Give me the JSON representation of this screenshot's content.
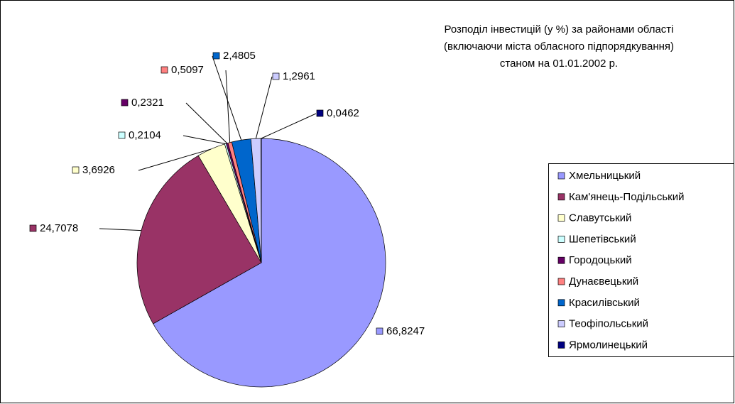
{
  "chart_data": {
    "type": "pie",
    "title": [
      "Розподіл інвестицій (у %) за районами області",
      "(включаючи міста обласного підпорядкування)",
      "станом на 01.01.2002 р."
    ],
    "categories": [
      "Хмельницький",
      "Кам'янець-Подільський",
      "Славутський",
      "Шепетівський",
      "Городоцький",
      "Дунаєвецький",
      "Красилівський",
      "Теофіпольський",
      "Ярмолинецький"
    ],
    "values": [
      66.8247,
      24.7078,
      3.6926,
      0.2104,
      0.2321,
      0.5097,
      2.4805,
      1.2961,
      0.0462
    ],
    "value_labels": [
      "66,8247",
      "24,7078",
      "3,6926",
      "0,2104",
      "0,2321",
      "0,5097",
      "2,4805",
      "1,2961",
      "0,0462"
    ],
    "colors": [
      "#9999FF",
      "#993366",
      "#FFFFCC",
      "#CCFFFF",
      "#660066",
      "#FF8080",
      "#0066CC",
      "#CCCCFF",
      "#000080"
    ],
    "legend": "right"
  }
}
